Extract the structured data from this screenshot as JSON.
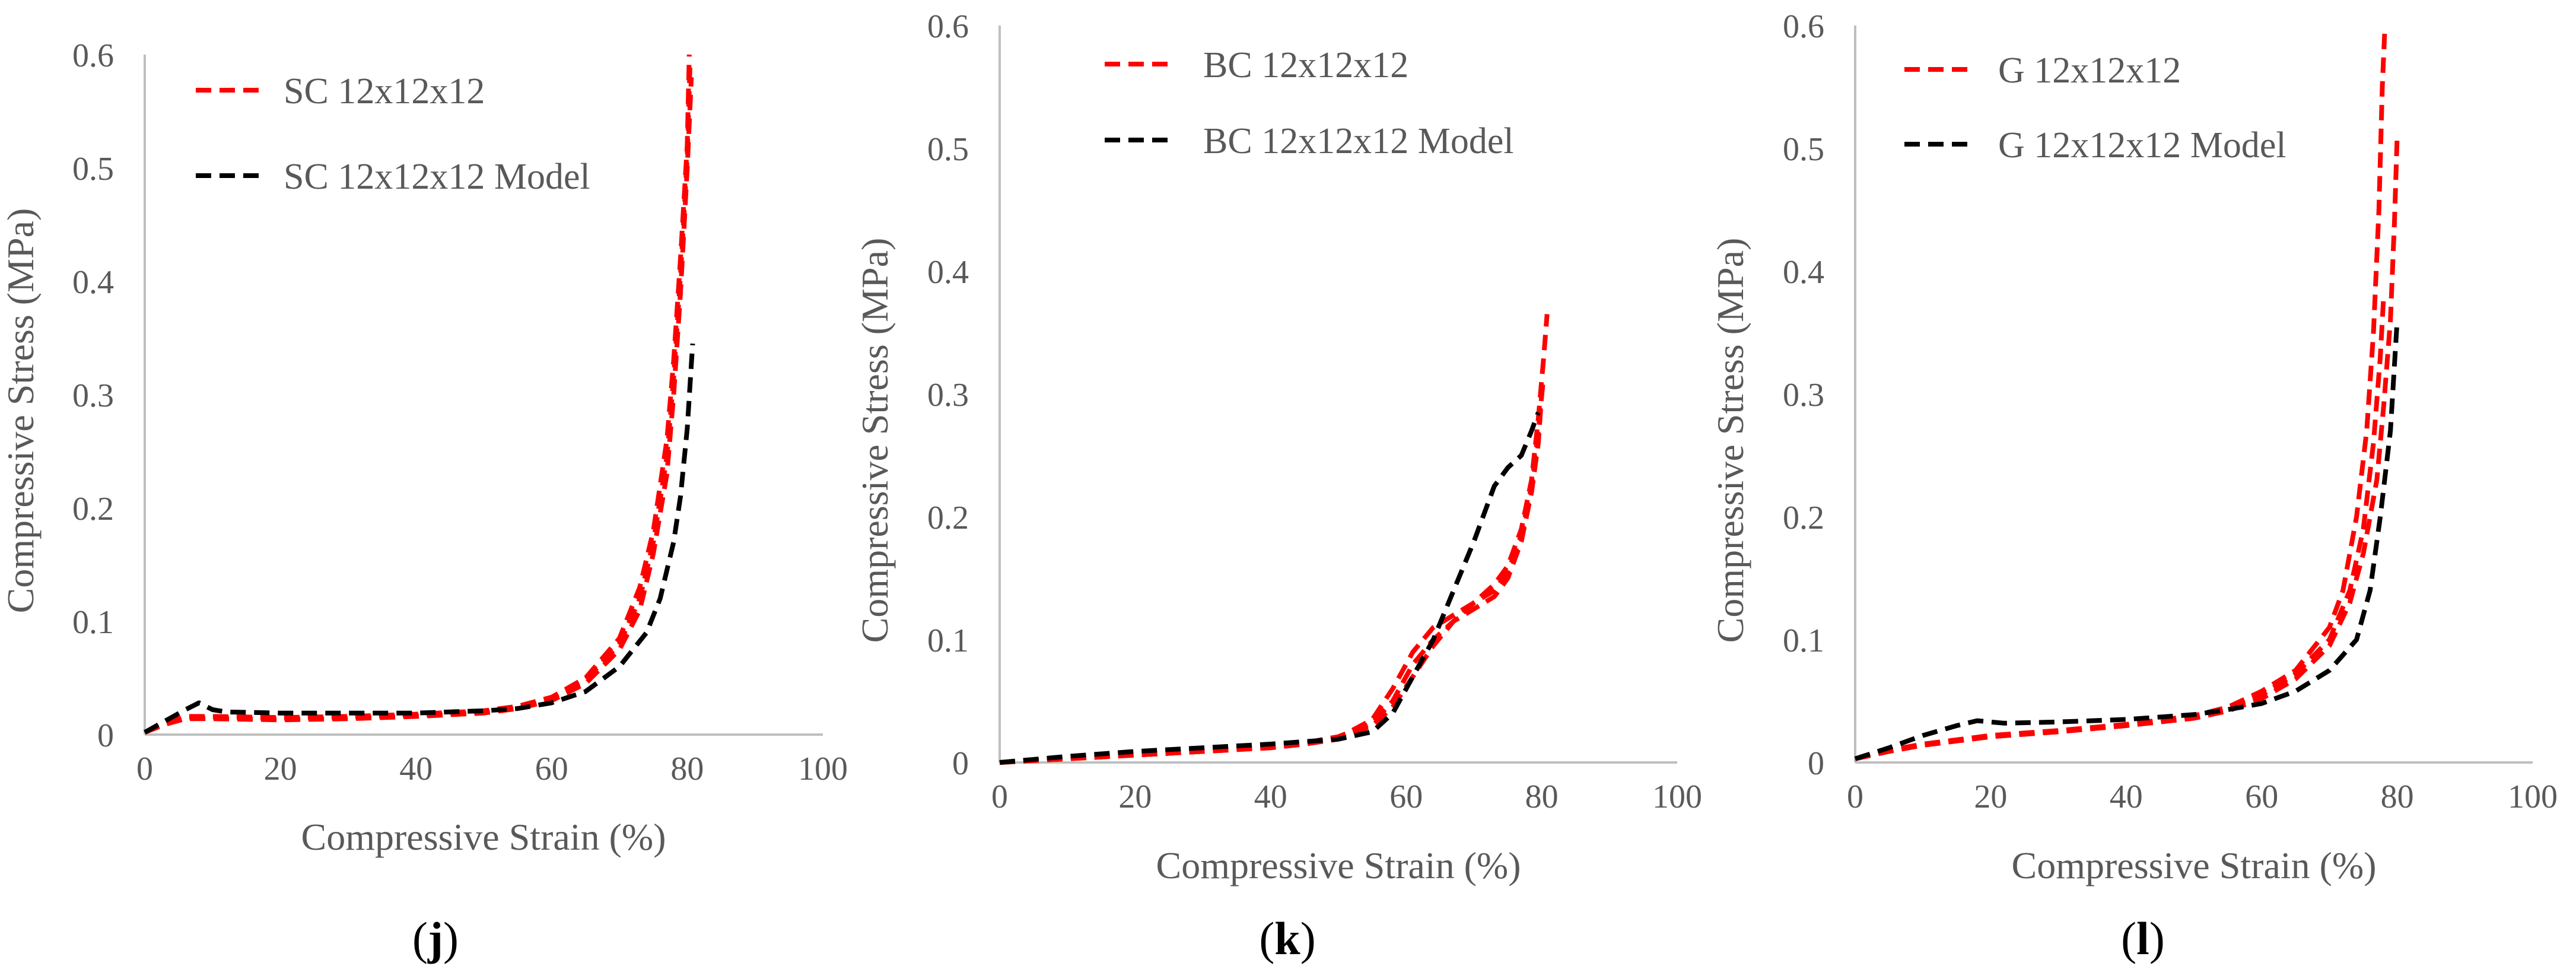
{
  "colors": {
    "experiment": "#ff0000",
    "model": "#000000",
    "axis": "#bfbfbf",
    "text": "#595959"
  },
  "chart_data": [
    {
      "type": "line",
      "panel_label_open": "(",
      "panel_label_letter": "j",
      "panel_label_close": ")",
      "xlabel": "Compressive Strain (%)",
      "ylabel": "Compressive Stress (MPa)",
      "xlim": [
        0,
        100
      ],
      "ylim": [
        0,
        0.6
      ],
      "xticks": [
        "0",
        "20",
        "40",
        "60",
        "80",
        "100"
      ],
      "yticks": [
        "0",
        "0.1",
        "0.2",
        "0.3",
        "0.4",
        "0.5",
        "0.6"
      ],
      "series": [
        {
          "name": "SC 12x12x12",
          "role": "experiment",
          "points": [
            [
              0,
              0.002
            ],
            [
              3,
              0.01
            ],
            [
              6,
              0.016
            ],
            [
              10,
              0.016
            ],
            [
              20,
              0.015
            ],
            [
              30,
              0.016
            ],
            [
              40,
              0.018
            ],
            [
              50,
              0.021
            ],
            [
              55,
              0.025
            ],
            [
              60,
              0.033
            ],
            [
              65,
              0.05
            ],
            [
              70,
              0.085
            ],
            [
              73,
              0.13
            ],
            [
              75,
              0.18
            ],
            [
              77,
              0.26
            ],
            [
              78,
              0.33
            ],
            [
              79,
              0.42
            ],
            [
              80,
              0.52
            ],
            [
              80.3,
              0.6
            ]
          ]
        },
        {
          "name": "SC 12x12x12",
          "role": "experiment-repeat",
          "points": [
            [
              0,
              0.002
            ],
            [
              3,
              0.009
            ],
            [
              6,
              0.014
            ],
            [
              10,
              0.014
            ],
            [
              20,
              0.013
            ],
            [
              30,
              0.014
            ],
            [
              40,
              0.016
            ],
            [
              50,
              0.019
            ],
            [
              55,
              0.023
            ],
            [
              60,
              0.03
            ],
            [
              65,
              0.045
            ],
            [
              70,
              0.075
            ],
            [
              73,
              0.11
            ],
            [
              75,
              0.16
            ],
            [
              77,
              0.23
            ],
            [
              78,
              0.3
            ],
            [
              79,
              0.39
            ],
            [
              80,
              0.5
            ],
            [
              80.6,
              0.58
            ]
          ]
        },
        {
          "name": "SC 12x12x12",
          "role": "experiment-repeat",
          "points": [
            [
              0,
              0.002
            ],
            [
              3,
              0.01
            ],
            [
              6,
              0.015
            ],
            [
              10,
              0.015
            ],
            [
              20,
              0.014
            ],
            [
              30,
              0.015
            ],
            [
              40,
              0.017
            ],
            [
              50,
              0.02
            ],
            [
              55,
              0.024
            ],
            [
              60,
              0.032
            ],
            [
              65,
              0.048
            ],
            [
              70,
              0.08
            ],
            [
              73,
              0.12
            ],
            [
              75,
              0.17
            ],
            [
              77,
              0.245
            ],
            [
              78,
              0.315
            ],
            [
              79,
              0.405
            ],
            [
              80,
              0.51
            ],
            [
              80.4,
              0.59
            ]
          ]
        },
        {
          "name": "SC 12x12x12 Model",
          "role": "model",
          "points": [
            [
              0,
              0.002
            ],
            [
              3,
              0.012
            ],
            [
              6,
              0.022
            ],
            [
              8,
              0.028
            ],
            [
              10,
              0.022
            ],
            [
              12,
              0.02
            ],
            [
              20,
              0.019
            ],
            [
              30,
              0.019
            ],
            [
              40,
              0.019
            ],
            [
              50,
              0.021
            ],
            [
              55,
              0.023
            ],
            [
              60,
              0.028
            ],
            [
              65,
              0.038
            ],
            [
              70,
              0.06
            ],
            [
              74,
              0.09
            ],
            [
              76,
              0.12
            ],
            [
              78,
              0.17
            ],
            [
              79,
              0.21
            ],
            [
              80,
              0.27
            ],
            [
              80.8,
              0.345
            ]
          ]
        }
      ]
    },
    {
      "type": "line",
      "panel_label_open": "(",
      "panel_label_letter": "k",
      "panel_label_close": ")",
      "xlabel": "Compressive Strain (%)",
      "ylabel": "Compressive Stress (MPa)",
      "xlim": [
        0,
        100
      ],
      "ylim": [
        0,
        0.6
      ],
      "xticks": [
        "0",
        "20",
        "40",
        "60",
        "80",
        "100"
      ],
      "yticks": [
        "0",
        "0.1",
        "0.2",
        "0.3",
        "0.4",
        "0.5",
        "0.6"
      ],
      "series": [
        {
          "name": "BC 12x12x12",
          "role": "experiment",
          "points": [
            [
              0,
              0
            ],
            [
              10,
              0.003
            ],
            [
              20,
              0.006
            ],
            [
              30,
              0.009
            ],
            [
              40,
              0.012
            ],
            [
              45,
              0.015
            ],
            [
              50,
              0.02
            ],
            [
              55,
              0.035
            ],
            [
              58,
              0.06
            ],
            [
              61,
              0.09
            ],
            [
              64,
              0.11
            ],
            [
              67,
              0.12
            ],
            [
              70,
              0.13
            ],
            [
              73,
              0.145
            ],
            [
              75,
              0.16
            ],
            [
              77,
              0.19
            ],
            [
              78.5,
              0.23
            ],
            [
              79.5,
              0.28
            ],
            [
              80.3,
              0.33
            ],
            [
              80.8,
              0.365
            ]
          ]
        },
        {
          "name": "BC 12x12x12",
          "role": "experiment-repeat",
          "points": [
            [
              0,
              0
            ],
            [
              10,
              0.004
            ],
            [
              20,
              0.007
            ],
            [
              30,
              0.01
            ],
            [
              40,
              0.013
            ],
            [
              45,
              0.016
            ],
            [
              50,
              0.021
            ],
            [
              55,
              0.032
            ],
            [
              58,
              0.05
            ],
            [
              61,
              0.08
            ],
            [
              64,
              0.1
            ],
            [
              67,
              0.115
            ],
            [
              70,
              0.125
            ],
            [
              73,
              0.135
            ],
            [
              75,
              0.15
            ],
            [
              77,
              0.18
            ],
            [
              78.5,
              0.22
            ],
            [
              79.5,
              0.26
            ],
            [
              80,
              0.3
            ]
          ]
        },
        {
          "name": "BC 12x12x12",
          "role": "experiment-repeat",
          "points": [
            [
              0,
              0
            ],
            [
              10,
              0.003
            ],
            [
              20,
              0.006
            ],
            [
              30,
              0.009
            ],
            [
              40,
              0.012
            ],
            [
              45,
              0.015
            ],
            [
              50,
              0.019
            ],
            [
              55,
              0.03
            ],
            [
              58,
              0.045
            ],
            [
              61,
              0.07
            ],
            [
              64,
              0.095
            ],
            [
              67,
              0.115
            ],
            [
              70,
              0.13
            ],
            [
              73,
              0.14
            ],
            [
              75,
              0.155
            ],
            [
              77,
              0.185
            ],
            [
              78.5,
              0.225
            ],
            [
              79.5,
              0.27
            ],
            [
              80.2,
              0.31
            ]
          ]
        },
        {
          "name": "BC 12x12x12 Model",
          "role": "model",
          "points": [
            [
              0,
              0
            ],
            [
              10,
              0.005
            ],
            [
              20,
              0.009
            ],
            [
              30,
              0.012
            ],
            [
              40,
              0.015
            ],
            [
              50,
              0.019
            ],
            [
              55,
              0.025
            ],
            [
              58,
              0.04
            ],
            [
              61,
              0.07
            ],
            [
              64,
              0.1
            ],
            [
              67,
              0.14
            ],
            [
              70,
              0.18
            ],
            [
              73,
              0.225
            ],
            [
              75,
              0.24
            ],
            [
              77,
              0.25
            ],
            [
              78.5,
              0.27
            ],
            [
              79.5,
              0.285
            ]
          ]
        }
      ]
    },
    {
      "type": "line",
      "panel_label_open": "(",
      "panel_label_letter": "l",
      "panel_label_close": ")",
      "xlabel": "Compressive Strain (%)",
      "ylabel": "Compressive Stress (MPa)",
      "xlim": [
        0,
        100
      ],
      "ylim": [
        0,
        0.6
      ],
      "xticks": [
        "0",
        "20",
        "40",
        "60",
        "80",
        "100"
      ],
      "yticks": [
        "0",
        "0.1",
        "0.2",
        "0.3",
        "0.4",
        "0.5",
        "0.6"
      ],
      "series": [
        {
          "name": "G 12x12x12",
          "role": "experiment",
          "points": [
            [
              0,
              0.003
            ],
            [
              5,
              0.01
            ],
            [
              10,
              0.015
            ],
            [
              20,
              0.022
            ],
            [
              30,
              0.026
            ],
            [
              40,
              0.031
            ],
            [
              50,
              0.038
            ],
            [
              55,
              0.045
            ],
            [
              60,
              0.058
            ],
            [
              65,
              0.075
            ],
            [
              70,
              0.11
            ],
            [
              72,
              0.14
            ],
            [
              74,
              0.2
            ],
            [
              75.5,
              0.27
            ],
            [
              76.5,
              0.35
            ],
            [
              77.3,
              0.45
            ],
            [
              77.8,
              0.55
            ],
            [
              78.2,
              0.6
            ]
          ]
        },
        {
          "name": "G 12x12x12",
          "role": "experiment-repeat",
          "points": [
            [
              0,
              0.003
            ],
            [
              5,
              0.009
            ],
            [
              10,
              0.014
            ],
            [
              20,
              0.021
            ],
            [
              30,
              0.025
            ],
            [
              40,
              0.03
            ],
            [
              50,
              0.036
            ],
            [
              55,
              0.042
            ],
            [
              60,
              0.052
            ],
            [
              65,
              0.068
            ],
            [
              70,
              0.095
            ],
            [
              73,
              0.13
            ],
            [
              75,
              0.17
            ],
            [
              77,
              0.23
            ],
            [
              78,
              0.29
            ],
            [
              79,
              0.36
            ],
            [
              79.6,
              0.44
            ],
            [
              80,
              0.51
            ]
          ]
        },
        {
          "name": "G 12x12x12",
          "role": "experiment-repeat",
          "points": [
            [
              0,
              0.003
            ],
            [
              5,
              0.01
            ],
            [
              10,
              0.014
            ],
            [
              20,
              0.021
            ],
            [
              30,
              0.025
            ],
            [
              40,
              0.03
            ],
            [
              50,
              0.037
            ],
            [
              55,
              0.044
            ],
            [
              60,
              0.055
            ],
            [
              65,
              0.072
            ],
            [
              70,
              0.1
            ],
            [
              73,
              0.14
            ],
            [
              75,
              0.19
            ],
            [
              76.5,
              0.26
            ],
            [
              77.5,
              0.33
            ],
            [
              78,
              0.38
            ]
          ]
        },
        {
          "name": "G 12x12x12 Model",
          "role": "model",
          "points": [
            [
              0,
              0.003
            ],
            [
              5,
              0.012
            ],
            [
              10,
              0.022
            ],
            [
              15,
              0.03
            ],
            [
              18,
              0.034
            ],
            [
              22,
              0.032
            ],
            [
              30,
              0.033
            ],
            [
              40,
              0.035
            ],
            [
              50,
              0.039
            ],
            [
              55,
              0.043
            ],
            [
              60,
              0.048
            ],
            [
              65,
              0.058
            ],
            [
              70,
              0.075
            ],
            [
              74,
              0.1
            ],
            [
              76,
              0.14
            ],
            [
              77.5,
              0.2
            ],
            [
              79,
              0.27
            ],
            [
              80,
              0.36
            ]
          ]
        }
      ]
    }
  ]
}
